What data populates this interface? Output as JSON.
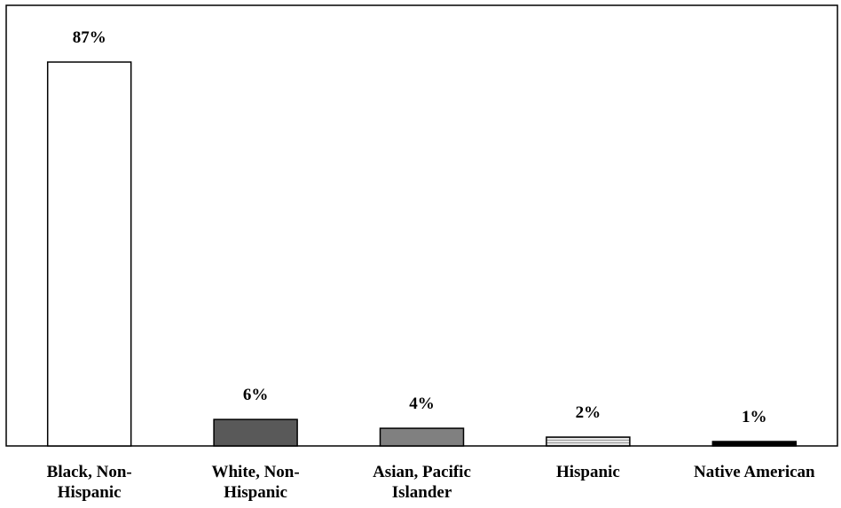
{
  "chart_data": {
    "type": "bar",
    "title": "",
    "xlabel": "",
    "ylabel": "",
    "ylim": [
      0,
      100
    ],
    "grid": false,
    "legend": "none",
    "categories": [
      [
        "Black, Non-",
        "Hispanic"
      ],
      [
        "White, Non-",
        "Hispanic"
      ],
      [
        "Asian, Pacific",
        "Islander"
      ],
      [
        "Hispanic"
      ],
      [
        "Native American"
      ]
    ],
    "values": [
      87,
      6,
      4,
      2,
      1
    ],
    "value_labels": [
      "87%",
      "6%",
      "4%",
      "2%",
      "1%"
    ],
    "bar_fills": [
      "#ffffff",
      "#595959",
      "#808080",
      "hatch-light-gray",
      "#000000"
    ]
  }
}
